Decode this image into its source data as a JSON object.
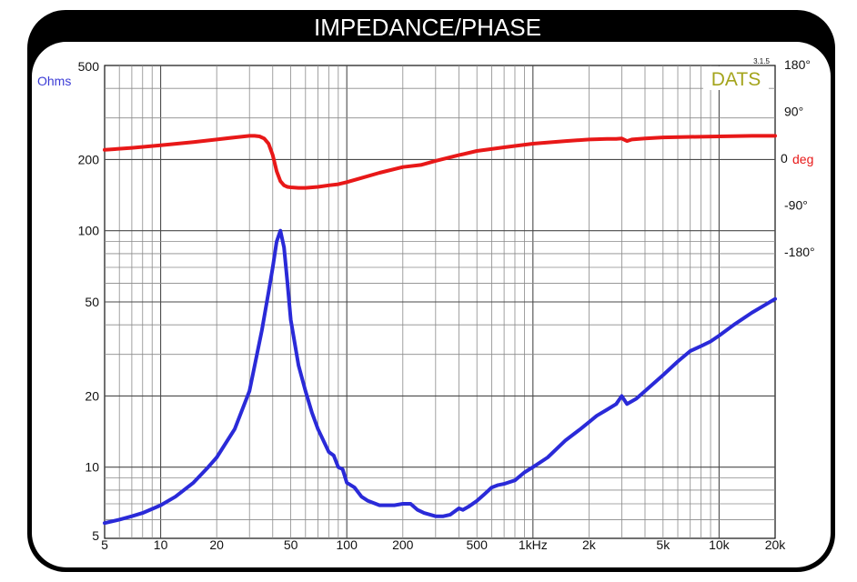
{
  "chart_data": {
    "type": "line",
    "title": "IMPEDANCE/PHASE",
    "badge": "DATS",
    "version": "3.1.5",
    "x_scale": "log",
    "xlim": [
      5,
      20000
    ],
    "x_ticks": [
      {
        "value": 5,
        "label": "5"
      },
      {
        "value": 10,
        "label": "10"
      },
      {
        "value": 20,
        "label": "20"
      },
      {
        "value": 50,
        "label": "50"
      },
      {
        "value": 100,
        "label": "100"
      },
      {
        "value": 200,
        "label": "200"
      },
      {
        "value": 500,
        "label": "500"
      },
      {
        "value": 1000,
        "label": "1kHz"
      },
      {
        "value": 2000,
        "label": "2k"
      },
      {
        "value": 5000,
        "label": "5k"
      },
      {
        "value": 10000,
        "label": "10k"
      },
      {
        "value": 20000,
        "label": "20k"
      }
    ],
    "left_axis": {
      "label": "Ohms",
      "scale": "log",
      "range": [
        5,
        500
      ],
      "ticks": [
        {
          "value": 500,
          "label": "500"
        },
        {
          "value": 200,
          "label": "200"
        },
        {
          "value": 100,
          "label": "100"
        },
        {
          "value": 50,
          "label": "50"
        },
        {
          "value": 20,
          "label": "20"
        },
        {
          "value": 10,
          "label": "10"
        },
        {
          "value": 5,
          "label": "5"
        }
      ]
    },
    "right_axis": {
      "label": "deg",
      "ticks": [
        {
          "value": 180,
          "label": "180°"
        },
        {
          "value": 90,
          "label": "90°"
        },
        {
          "value": 0,
          "label": "0"
        },
        {
          "value": -90,
          "label": "-90°"
        },
        {
          "value": -180,
          "label": "-180°"
        }
      ]
    },
    "colors": {
      "impedance": "#2a2ad8",
      "phase": "#e81818",
      "ohms_label": "#3b3bd6",
      "deg_label": "#e81818",
      "badge": "#a4a41c"
    },
    "series": [
      {
        "name": "Impedance",
        "axis": "left",
        "x": [
          5,
          6,
          7,
          8,
          10,
          12,
          15,
          18,
          20,
          25,
          30,
          35,
          38,
          40,
          42,
          44,
          46,
          48,
          50,
          55,
          60,
          65,
          70,
          80,
          85,
          90,
          95,
          100,
          110,
          120,
          130,
          150,
          180,
          200,
          220,
          240,
          260,
          300,
          330,
          360,
          380,
          400,
          420,
          450,
          500,
          550,
          600,
          650,
          700,
          800,
          900,
          1000,
          1200,
          1500,
          1800,
          2000,
          2200,
          2500,
          2800,
          3000,
          3200,
          3400,
          3600,
          4000,
          5000,
          6000,
          7000,
          8000,
          9000,
          10000,
          12000,
          15000,
          18000,
          20000
        ],
        "values": [
          5.8,
          6.0,
          6.2,
          6.4,
          6.9,
          7.5,
          8.6,
          10.0,
          11.0,
          14.5,
          21,
          38,
          55,
          70,
          90,
          100,
          85,
          60,
          42,
          27,
          21,
          17,
          14.5,
          11.6,
          11.2,
          10.0,
          9.8,
          8.6,
          8.2,
          7.5,
          7.2,
          6.9,
          6.9,
          7.0,
          7.0,
          6.6,
          6.4,
          6.2,
          6.2,
          6.3,
          6.5,
          6.7,
          6.6,
          6.8,
          7.2,
          7.7,
          8.2,
          8.4,
          8.5,
          8.8,
          9.5,
          10.0,
          11.0,
          13.0,
          14.5,
          15.5,
          16.5,
          17.5,
          18.5,
          20.0,
          18.5,
          19.0,
          19.5,
          21.0,
          24.5,
          28.0,
          31.0,
          32.5,
          34.0,
          36.0,
          40.0,
          45.0,
          49.0,
          51.5
        ]
      },
      {
        "name": "Phase",
        "axis": "right",
        "x": [
          5,
          7,
          10,
          15,
          20,
          25,
          30,
          32,
          34,
          36,
          38,
          40,
          42,
          44,
          46,
          48,
          50,
          55,
          60,
          70,
          80,
          90,
          100,
          120,
          150,
          200,
          250,
          300,
          400,
          500,
          700,
          1000,
          1500,
          2000,
          2500,
          2800,
          3000,
          3200,
          3400,
          4000,
          5000,
          7000,
          10000,
          15000,
          20000
        ],
        "values": [
          16,
          20,
          25,
          31,
          36,
          40,
          43,
          43,
          42,
          38,
          28,
          6,
          -25,
          -44,
          -52,
          -55,
          -56,
          -57,
          -57,
          -55,
          -52,
          -50,
          -46,
          -38,
          -28,
          -17,
          -13,
          -5,
          6,
          14,
          21,
          28,
          33,
          36,
          37,
          37,
          38,
          33,
          36,
          38,
          40,
          41,
          42,
          43,
          43
        ]
      }
    ]
  }
}
